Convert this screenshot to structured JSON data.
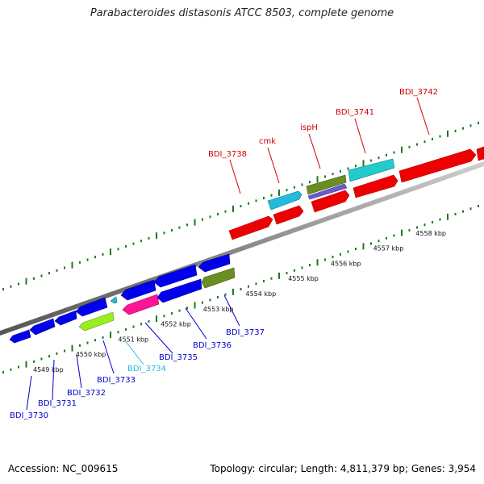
{
  "title": "Parabacteroides distasonis ATCC 8503, complete genome",
  "footer": {
    "accession": "Accession: NC_009615",
    "topology": "Topology: circular; Length: 4,811,379 bp; Genes: 3,954"
  },
  "colors": {
    "backbone": "#808080",
    "tick": "#1a7a1a",
    "forward_label": "#cc0000",
    "reverse_label": "#0000cc",
    "highlight_label": "#22bbdd",
    "red": "#ee0000",
    "blue": "#0000ee",
    "cyan": "#22bbdd",
    "olive": "#6b8e23",
    "slate": "#6a5acd",
    "magenta": "#ff1493",
    "lime": "#99ee22"
  },
  "kbp_markers": [
    "4549 kbp",
    "4550 kbp",
    "4551 kbp",
    "4552 kbp",
    "4553 kbp",
    "4554 kbp",
    "4555 kbp",
    "4556 kbp",
    "4557 kbp",
    "4558 kbp"
  ],
  "forward_labels": [
    "BDI_3738",
    "cmk",
    "ispH",
    "BDI_3741",
    "BDI_3742"
  ],
  "reverse_labels": [
    "BDI_3730",
    "BDI_3731",
    "BDI_3732",
    "BDI_3733",
    "BDI_3734",
    "BDI_3735",
    "BDI_3736",
    "BDI_3737"
  ]
}
